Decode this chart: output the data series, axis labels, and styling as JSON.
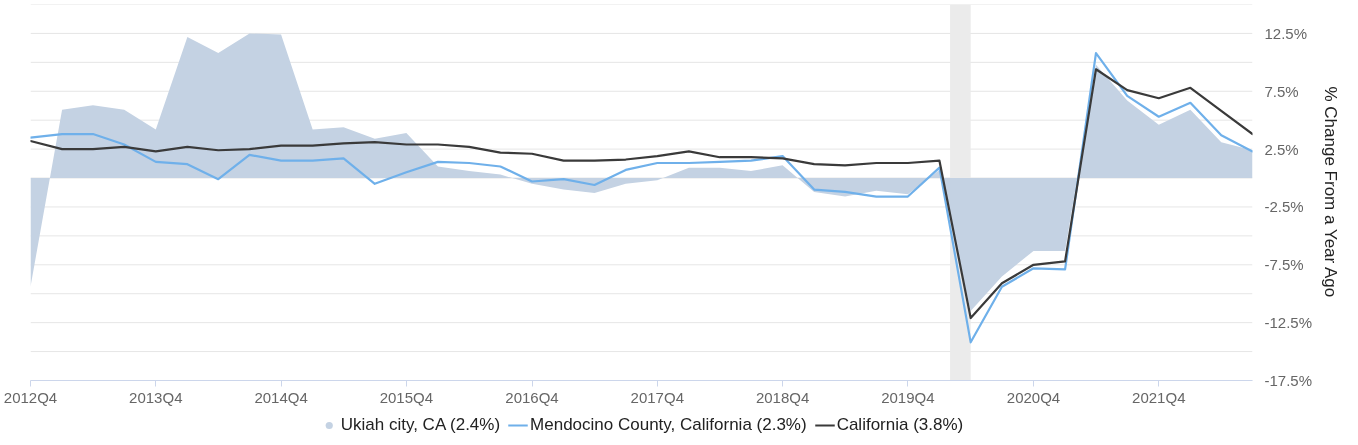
{
  "chart_data": {
    "type": "line",
    "ylabel": "% Change From a Year Ago",
    "x": [
      "2012-10",
      "2013-01",
      "2013-04",
      "2013-07",
      "2013-10",
      "2014-01",
      "2014-04",
      "2014-07",
      "2014-10",
      "2015-01",
      "2015-04",
      "2015-07",
      "2015-10",
      "2016-01",
      "2016-04",
      "2016-07",
      "2016-10",
      "2017-01",
      "2017-04",
      "2017-07",
      "2017-10",
      "2018-01",
      "2018-04",
      "2018-07",
      "2018-10",
      "2019-01",
      "2019-04",
      "2019-07",
      "2019-10",
      "2020-01",
      "2020-04",
      "2020-07",
      "2020-10",
      "2021-01",
      "2021-04",
      "2021-07",
      "2021-10",
      "2022-01",
      "2022-04",
      "2022-07"
    ],
    "xlim": [
      "2012-10",
      "2022-07"
    ],
    "xticks": [
      {
        "value": "2012-10",
        "label": "2012Q4"
      },
      {
        "value": "2013-10",
        "label": "2013Q4"
      },
      {
        "value": "2014-10",
        "label": "2014Q4"
      },
      {
        "value": "2015-10",
        "label": "2015Q4"
      },
      {
        "value": "2016-10",
        "label": "2016Q4"
      },
      {
        "value": "2017-10",
        "label": "2017Q4"
      },
      {
        "value": "2018-10",
        "label": "2018Q4"
      },
      {
        "value": "2019-10",
        "label": "2019Q4"
      },
      {
        "value": "2020-10",
        "label": "2020Q4"
      },
      {
        "value": "2021-10",
        "label": "2021Q4"
      }
    ],
    "ylim": [
      -17.5,
      15
    ],
    "yticks": [
      {
        "value": -17.5,
        "label": "-17.5%"
      },
      {
        "value": -15,
        "label": null
      },
      {
        "value": -12.5,
        "label": "-12.5%"
      },
      {
        "value": -10,
        "label": null
      },
      {
        "value": -7.5,
        "label": "-7.5%"
      },
      {
        "value": -5,
        "label": null
      },
      {
        "value": -2.5,
        "label": "-2.5%"
      },
      {
        "value": 0,
        "label": null
      },
      {
        "value": 2.5,
        "label": "2.5%"
      },
      {
        "value": 5,
        "label": null
      },
      {
        "value": 7.5,
        "label": "7.5%"
      },
      {
        "value": 10,
        "label": null
      },
      {
        "value": 12.5,
        "label": "12.5%"
      },
      {
        "value": 15,
        "label": null
      }
    ],
    "grid": "y",
    "legend": "bottom",
    "bands": [
      {
        "axis": "x",
        "from": "2020-02",
        "to": "2020-04",
        "color": "#ebebeb"
      }
    ],
    "series": [
      {
        "name": "Ukiah city, CA (2.4%)",
        "type": "area",
        "color": "#c4d2e3",
        "values": [
          -9.4,
          5.9,
          6.3,
          5.9,
          4.2,
          12.2,
          10.8,
          12.5,
          12.4,
          4.2,
          4.4,
          3.4,
          3.9,
          1.0,
          0.6,
          0.3,
          -0.5,
          -1.0,
          -1.3,
          -0.5,
          -0.2,
          0.9,
          0.9,
          0.6,
          1.1,
          -1.2,
          -1.6,
          -1.1,
          -1.4,
          0.7,
          -11.5,
          -8.5,
          -6.3,
          -6.3,
          9.8,
          6.7,
          4.6,
          5.9,
          3.1,
          2.4
        ]
      },
      {
        "name": "Mendocino County, California (2.3%)",
        "type": "line",
        "color": "#6fb0ea",
        "values": [
          3.5,
          3.8,
          3.8,
          2.9,
          1.4,
          1.2,
          -0.1,
          2.0,
          1.5,
          1.5,
          1.7,
          -0.5,
          0.5,
          1.4,
          1.3,
          1.0,
          -0.3,
          -0.1,
          -0.6,
          0.7,
          1.3,
          1.3,
          1.4,
          1.5,
          1.9,
          -1.0,
          -1.2,
          -1.6,
          -1.6,
          0.9,
          -14.2,
          -9.4,
          -7.8,
          -7.9,
          10.8,
          7.1,
          5.3,
          6.5,
          3.7,
          2.3
        ]
      },
      {
        "name": "California (3.8%)",
        "type": "line",
        "color": "#3a3a3a",
        "values": [
          3.2,
          2.5,
          2.5,
          2.7,
          2.3,
          2.7,
          2.4,
          2.5,
          2.8,
          2.8,
          3.0,
          3.1,
          2.9,
          2.9,
          2.7,
          2.2,
          2.1,
          1.5,
          1.5,
          1.6,
          1.9,
          2.3,
          1.8,
          1.8,
          1.7,
          1.2,
          1.1,
          1.3,
          1.3,
          1.5,
          -12.1,
          -9.1,
          -7.5,
          -7.2,
          9.4,
          7.6,
          6.9,
          7.8,
          5.8,
          3.8
        ]
      }
    ]
  }
}
